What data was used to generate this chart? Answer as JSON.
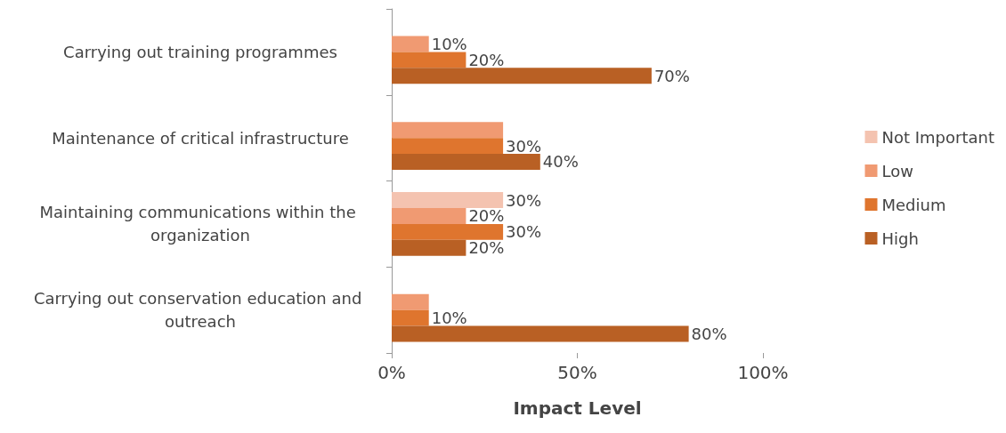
{
  "chart_data": {
    "type": "bar",
    "orientation": "horizontal",
    "xlabel": "Impact Level",
    "categories": [
      "Carrying out training programmes",
      "Maintenance of critical infrastructure",
      "Maintaining communications within the organization",
      "Carrying out conservation education and outreach"
    ],
    "series": [
      {
        "name": "Not Important",
        "color": "#f4c3b0",
        "values": [
          null,
          null,
          30,
          null
        ],
        "value_labels": [
          null,
          null,
          "30%",
          null
        ]
      },
      {
        "name": "Low",
        "color": "#f09a72",
        "values": [
          10,
          30,
          20,
          10
        ],
        "value_labels": [
          "10%",
          null,
          "20%",
          null
        ]
      },
      {
        "name": "Medium",
        "color": "#df752e",
        "values": [
          20,
          30,
          30,
          10
        ],
        "value_labels": [
          "20%",
          "30%",
          "30%",
          "10%"
        ]
      },
      {
        "name": "High",
        "color": "#b96024",
        "values": [
          70,
          40,
          20,
          80
        ],
        "value_labels": [
          "70%",
          "40%",
          "20%",
          "80%"
        ]
      }
    ],
    "xlim": [
      0,
      100
    ],
    "xticks": [
      {
        "value": 0,
        "label": "0%"
      },
      {
        "value": 50,
        "label": "50%"
      },
      {
        "value": 100,
        "label": "100%"
      }
    ],
    "grid": false,
    "legend": "right"
  }
}
